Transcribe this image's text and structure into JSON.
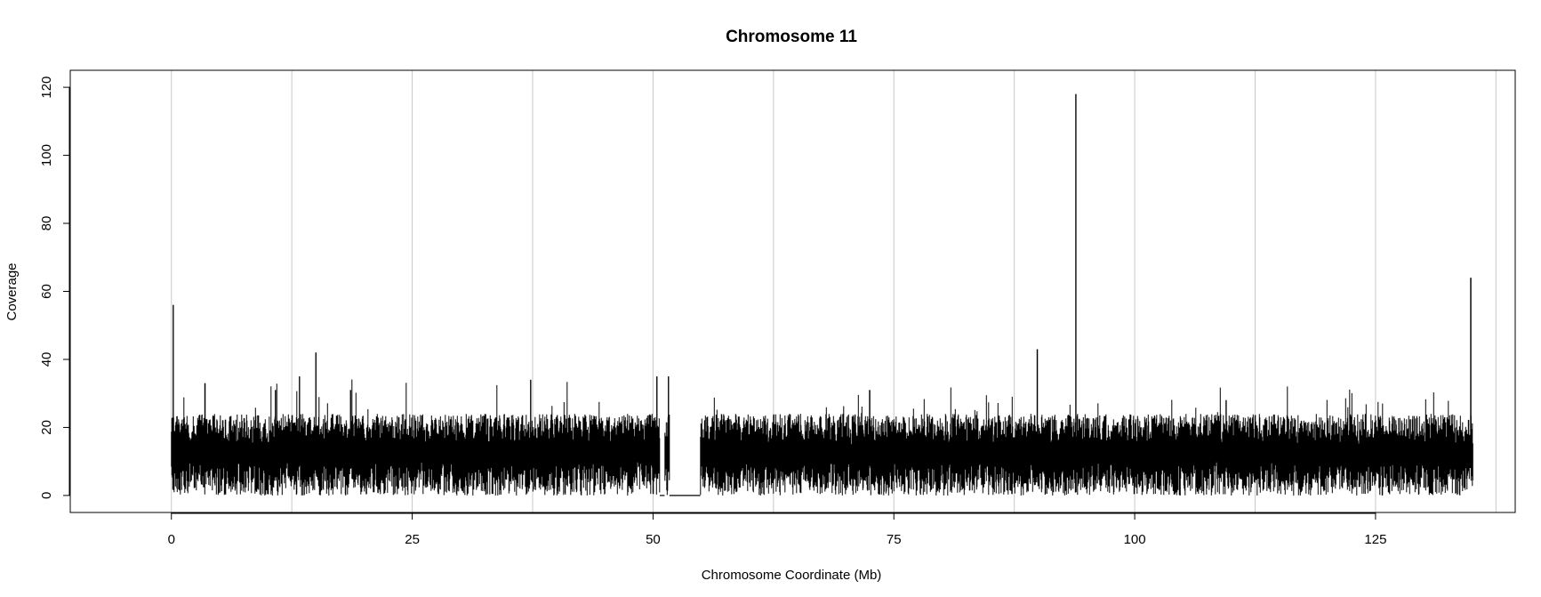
{
  "chart_data": {
    "type": "line",
    "title": "Chromosome 11",
    "xlabel": "Chromosome Coordinate (Mb)",
    "ylabel": "Coverage",
    "xlim": [
      -10.5,
      139.5
    ],
    "ylim": [
      -5,
      125
    ],
    "x_ticks": [
      0,
      25,
      50,
      75,
      100,
      125
    ],
    "x_tick_labels": [
      "0",
      "25",
      "50",
      "75",
      "100",
      "125"
    ],
    "y_ticks": [
      0,
      20,
      40,
      60,
      80,
      100,
      120
    ],
    "y_tick_labels": [
      "0",
      "20",
      "40",
      "60",
      "80",
      "100",
      "120"
    ],
    "vertical_gridlines": [
      0,
      12.5,
      25,
      37.5,
      50,
      62.5,
      75,
      87.5,
      100,
      112.5,
      125,
      137.5
    ],
    "grid": true,
    "gridline_color": "#c8c8c8",
    "line_color": "#000000",
    "coverage_band": {
      "typical_low": 5,
      "typical_high": 22,
      "median": 13
    },
    "gaps": [
      {
        "x_start": 50.7,
        "x_end": 51.2,
        "y": 0
      },
      {
        "x_start": 51.7,
        "x_end": 54.9,
        "y": 0
      }
    ],
    "spikes": [
      {
        "x": 0.2,
        "y": 56
      },
      {
        "x": 3.5,
        "y": 33
      },
      {
        "x": 10.8,
        "y": 31
      },
      {
        "x": 13.3,
        "y": 35
      },
      {
        "x": 15.0,
        "y": 42
      },
      {
        "x": 18.6,
        "y": 31
      },
      {
        "x": 37.3,
        "y": 34
      },
      {
        "x": 50.4,
        "y": 35
      },
      {
        "x": 51.6,
        "y": 35
      },
      {
        "x": 72.5,
        "y": 31
      },
      {
        "x": 89.9,
        "y": 43
      },
      {
        "x": 93.9,
        "y": 118
      },
      {
        "x": 109.5,
        "y": 28
      },
      {
        "x": 134.9,
        "y": 64
      }
    ],
    "x_range_covered": [
      0,
      135.1
    ]
  }
}
